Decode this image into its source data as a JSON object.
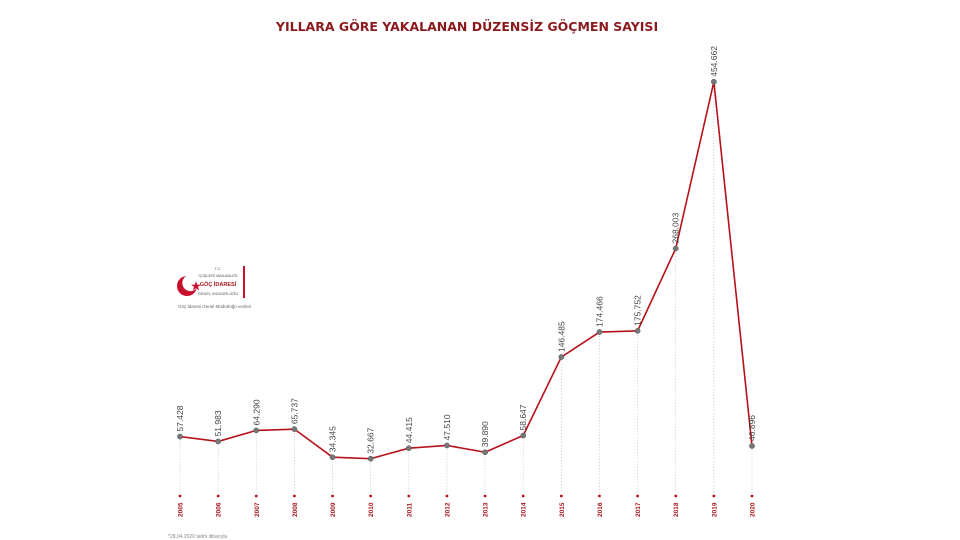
{
  "chart_data": {
    "type": "line",
    "title": "YILLARA GÖRE YAKALANAN DÜZENSİZ GÖÇMEN SAYISI",
    "categories": [
      "2005",
      "2006",
      "2007",
      "2008",
      "2009",
      "2010",
      "2011",
      "2012",
      "2013",
      "2014",
      "2015",
      "2016",
      "2017",
      "2018",
      "2019",
      "2020"
    ],
    "values": [
      57428,
      51983,
      64290,
      65737,
      34345,
      32667,
      44415,
      47510,
      39890,
      58647,
      146485,
      174466,
      175752,
      268003,
      454662,
      46896
    ],
    "value_labels": [
      "57.428",
      "51.983",
      "64.290",
      "65.737",
      "34.345",
      "32.667",
      "44.415",
      "47.510",
      "39.890",
      "58.647",
      "146.485",
      "174.466",
      "175.752",
      "268.003",
      "454.662",
      "46.896"
    ],
    "series_color": "#b5121b",
    "point_color": "#777777",
    "grid": false,
    "legend": "none"
  },
  "logo": {
    "line1": "T.C.",
    "line2": "İÇİŞLERİ BAKANLIĞI",
    "line3": "GÖÇ İDARESİ",
    "line4": "GENEL MÜDÜRLÜĞÜ",
    "caption": "Göç İdaresi Genel Müdürlüğü verileri",
    "accent": "#c8102e"
  },
  "footnote": "*28.04.2020 tarihi itibarıyla"
}
